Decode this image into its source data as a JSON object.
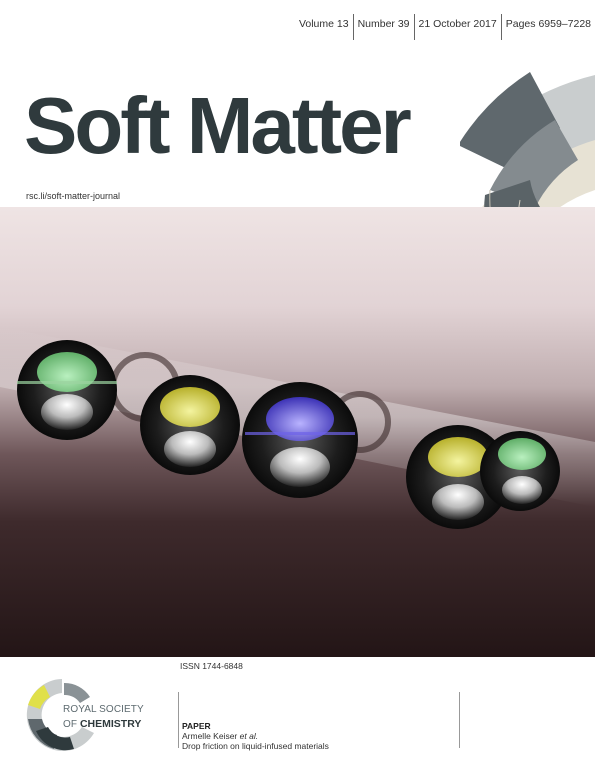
{
  "issue": {
    "volume": "Volume 13",
    "number": "Number 39",
    "date": "21 October 2017",
    "pages": "Pages 6959–7228"
  },
  "journal": {
    "title": "Soft Matter",
    "url": "rsc.li/soft-matter-journal"
  },
  "issn": "ISSN 1744-6848",
  "publisher": {
    "line1": "ROYAL SOCIETY",
    "line2_prefix": "OF ",
    "line2_bold": "CHEMISTRY"
  },
  "article": {
    "type": "PAPER",
    "authors": "Armelle Keiser",
    "authors_suffix": " et al.",
    "title": "Drop friction on liquid-infused materials"
  },
  "colors": {
    "brand_dark": "#2f3a3d",
    "deco_grey": "#6b7479",
    "deco_light": "#c9cdce",
    "deco_beige": "#dcd7c8",
    "drop_green": "#7ccf86",
    "drop_yellow": "#d8d64a",
    "drop_blue": "#5b4fd6"
  }
}
